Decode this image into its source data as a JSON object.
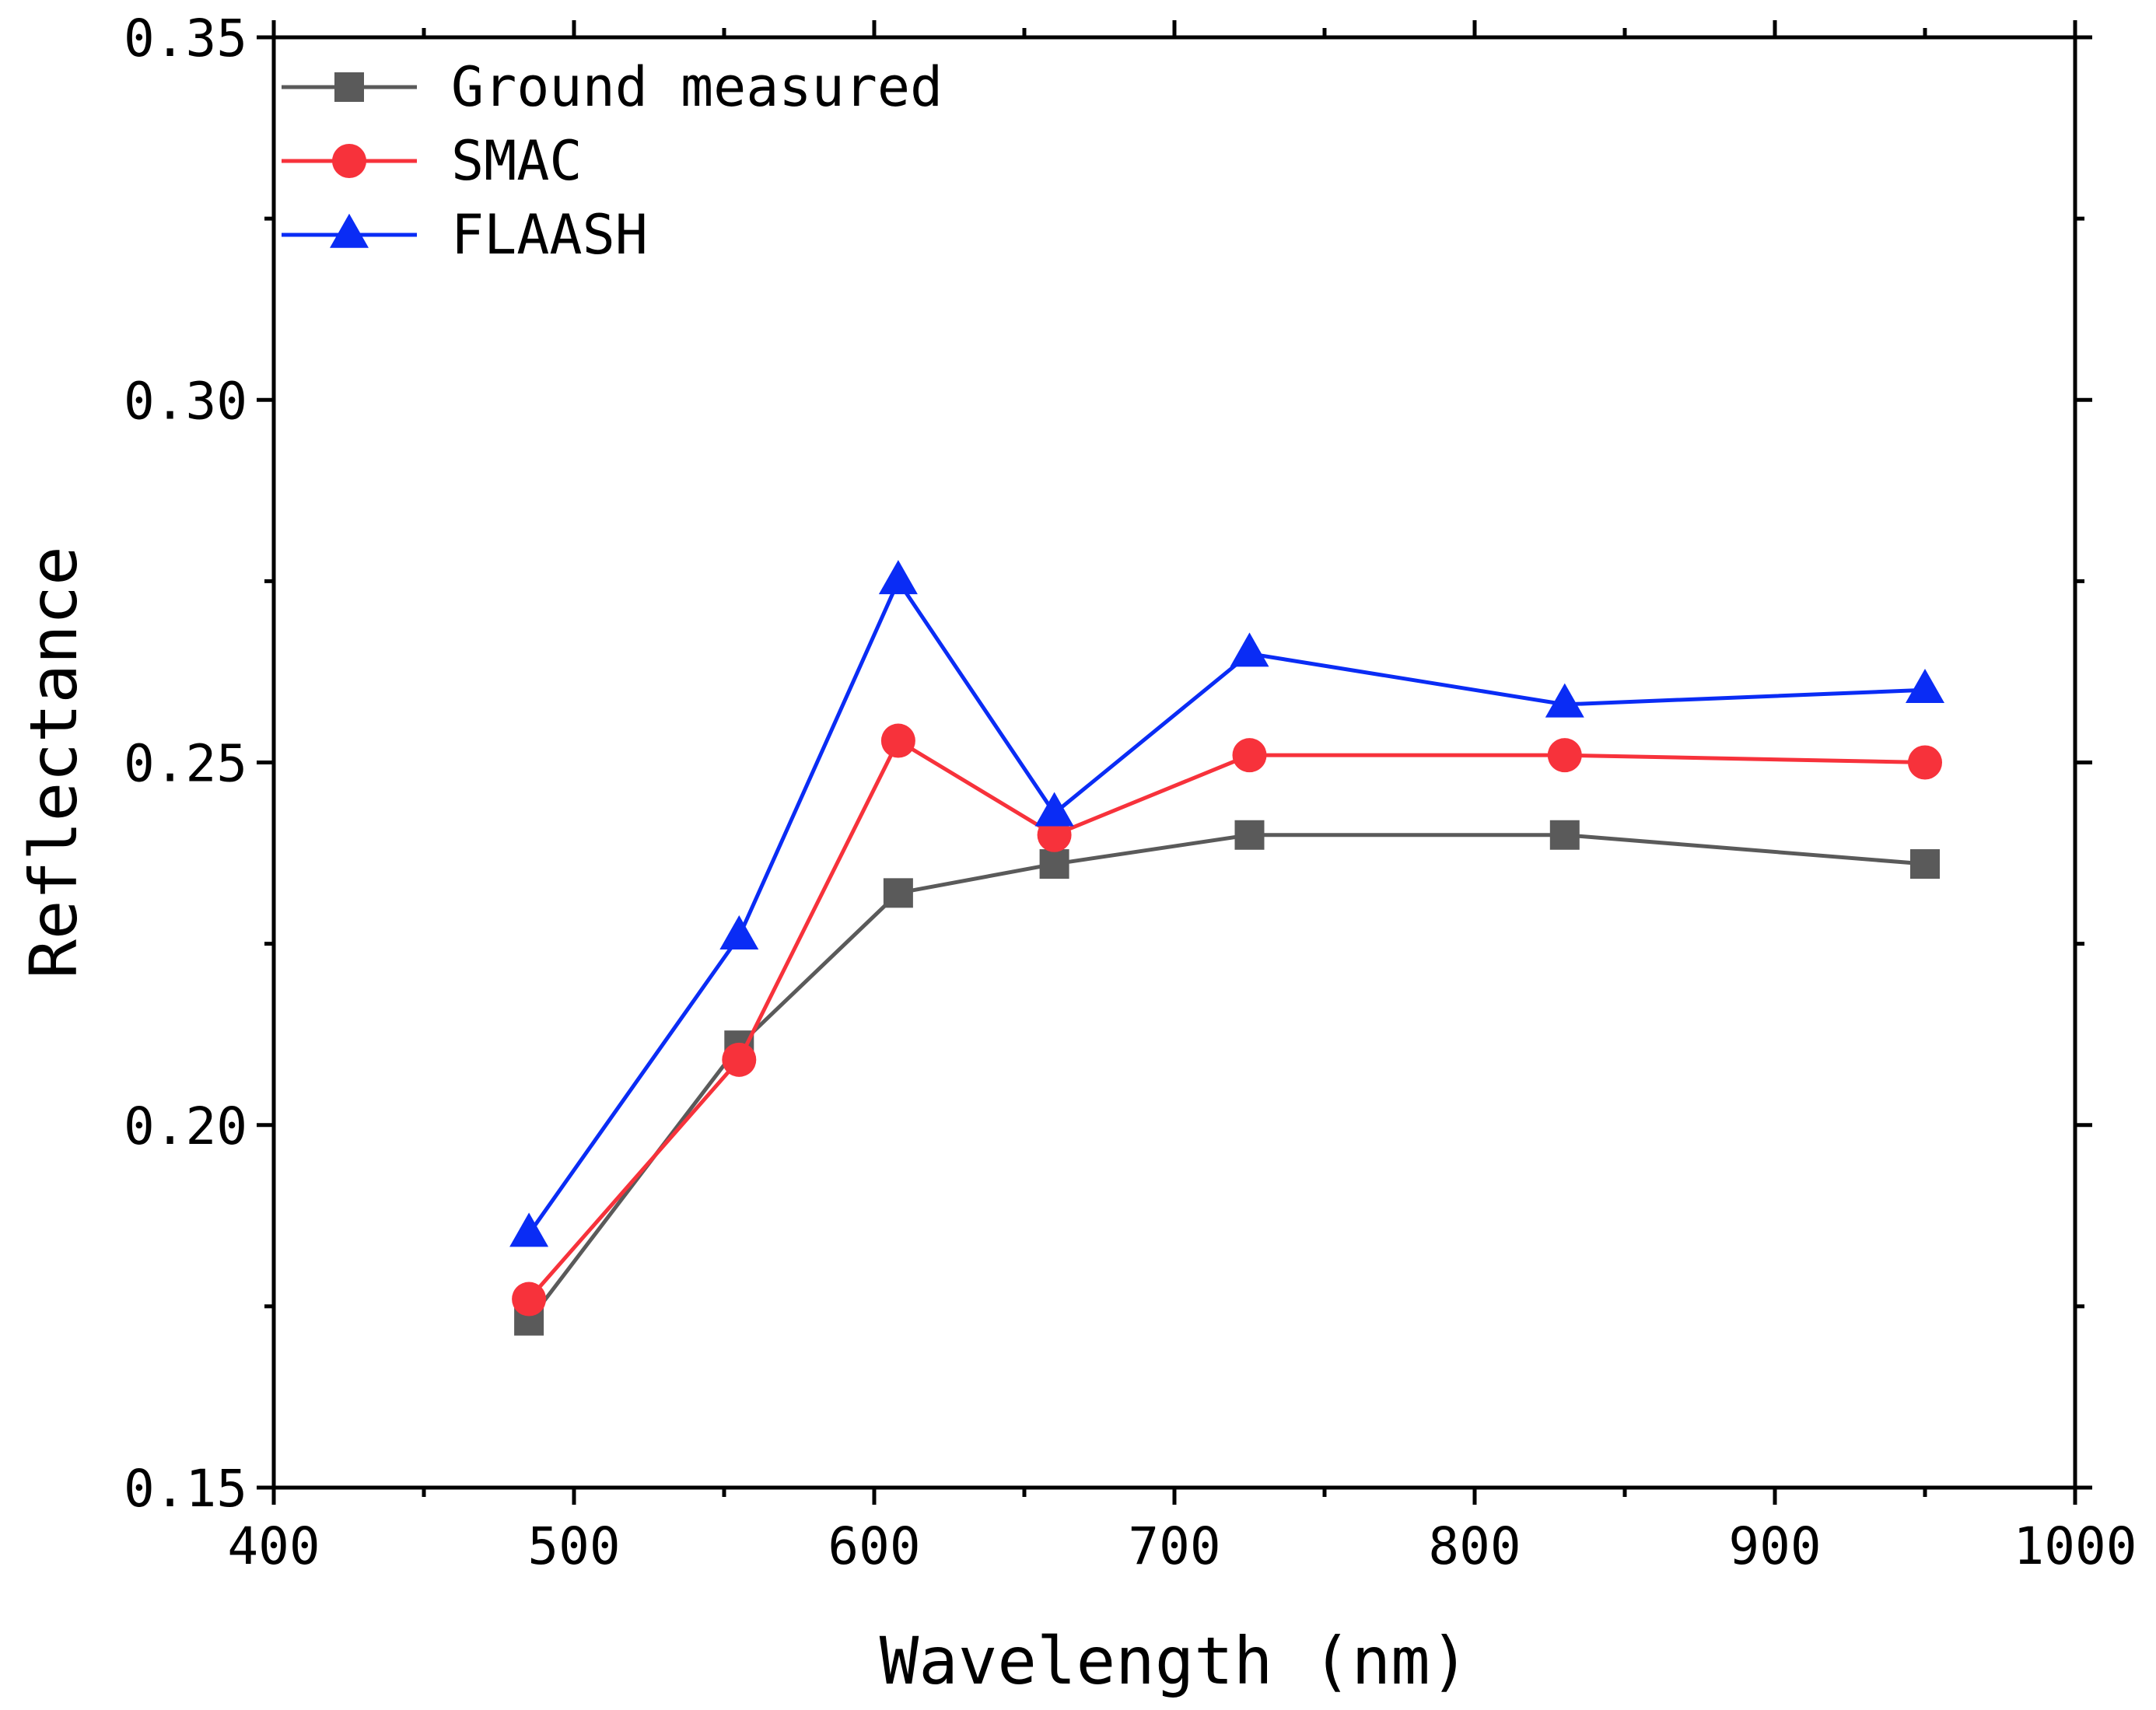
{
  "chart_data": {
    "type": "line",
    "title": "",
    "xlabel": "Wavelength (nm)",
    "ylabel": "Reflectance",
    "xlim": [
      400,
      1000
    ],
    "ylim": [
      0.15,
      0.35
    ],
    "x_ticks": [
      400,
      500,
      600,
      700,
      800,
      900,
      1000
    ],
    "x_tick_labels": [
      "400",
      "500",
      "600",
      "700",
      "800",
      "900",
      "1000"
    ],
    "y_ticks": [
      0.15,
      0.2,
      0.25,
      0.3,
      0.35
    ],
    "y_tick_labels": [
      "0.15",
      "0.20",
      "0.25",
      "0.30",
      "0.35"
    ],
    "grid": false,
    "legend_position": "top-left",
    "x": [
      485,
      555,
      608,
      660,
      725,
      830,
      950
    ],
    "series": [
      {
        "name": "Ground measured",
        "marker": "square",
        "color": "#5a5a5a",
        "values": [
          0.173,
          0.211,
          0.232,
          0.236,
          0.24,
          0.24,
          0.236
        ]
      },
      {
        "name": "SMAC",
        "marker": "circle",
        "color": "#f7323b",
        "values": [
          0.176,
          0.209,
          0.253,
          0.24,
          0.251,
          0.251,
          0.25
        ]
      },
      {
        "name": "FLAASH",
        "marker": "triangle",
        "color": "#0a2cf5",
        "values": [
          0.185,
          0.226,
          0.275,
          0.243,
          0.265,
          0.258,
          0.26
        ]
      }
    ]
  }
}
